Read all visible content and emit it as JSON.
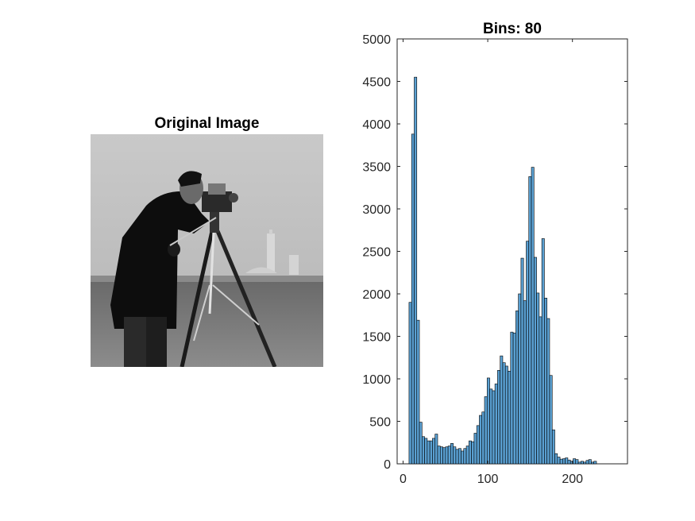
{
  "figure": {
    "left_title": "Original Image",
    "image_icon": "cameraman-photo"
  },
  "colors": {
    "bar_fill": "#5aa0d2",
    "bar_edge": "#000000",
    "axis": "#262626"
  },
  "chart_data": {
    "type": "bar",
    "title": "Bins: 80",
    "xlabel": "",
    "ylabel": "",
    "xlim": [
      -7,
      265
    ],
    "ylim": [
      0,
      5000
    ],
    "xticks": [
      0,
      100,
      200
    ],
    "yticks": [
      0,
      500,
      1000,
      1500,
      2000,
      2500,
      3000,
      3500,
      4000,
      4500,
      5000
    ],
    "bin_edges_start": 7,
    "bin_width": 3.075,
    "values": [
      1900,
      3880,
      4550,
      1690,
      490,
      320,
      300,
      270,
      270,
      300,
      350,
      210,
      200,
      190,
      200,
      210,
      240,
      200,
      170,
      180,
      150,
      180,
      210,
      270,
      260,
      360,
      450,
      570,
      610,
      790,
      1010,
      880,
      860,
      940,
      1100,
      1270,
      1190,
      1150,
      1090,
      1550,
      1540,
      1800,
      2000,
      2420,
      1920,
      2620,
      3380,
      3490,
      2430,
      2010,
      1730,
      2650,
      1950,
      1710,
      1040,
      400,
      120,
      80,
      55,
      60,
      70,
      45,
      30,
      60,
      50,
      20,
      30,
      20,
      40,
      50,
      20,
      30
    ]
  }
}
